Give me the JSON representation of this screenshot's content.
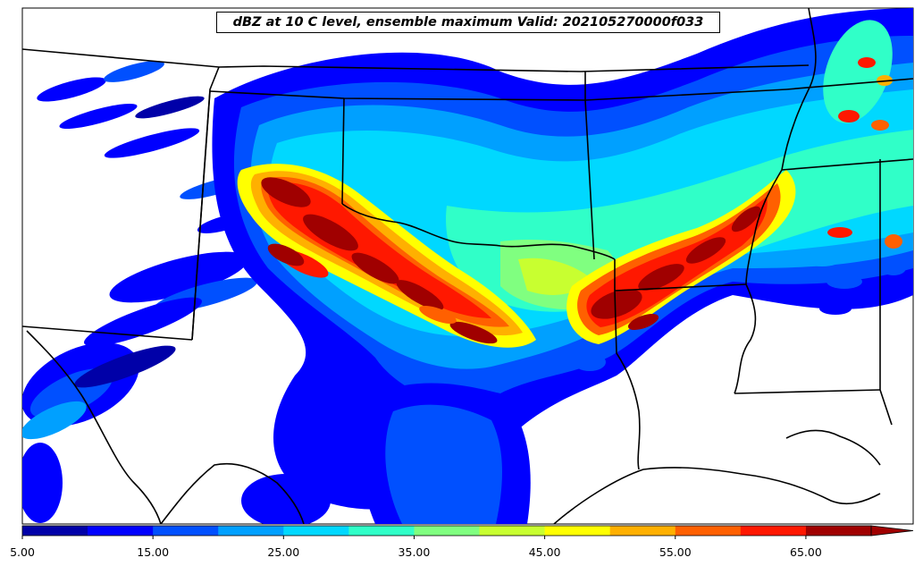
{
  "title": "dBZ at 10 C level, ensemble maximum Valid: 202105270000f033",
  "colorbar": {
    "ticks": [
      "5.00",
      "15.00",
      "25.00",
      "35.00",
      "45.00",
      "55.00",
      "65.00"
    ],
    "tick_values": [
      5,
      15,
      25,
      35,
      45,
      55,
      65
    ],
    "levels": [
      5,
      10,
      15,
      20,
      25,
      30,
      35,
      40,
      45,
      50,
      55,
      60,
      65,
      70
    ],
    "colors": [
      "#0000a8",
      "#0000ff",
      "#0050ff",
      "#00a0ff",
      "#00d8ff",
      "#30ffc8",
      "#80ff80",
      "#c8ff30",
      "#ffff00",
      "#ffb000",
      "#ff6000",
      "#ff1800",
      "#a00000"
    ],
    "extend": "max"
  },
  "colors": {
    "state_border": "#000000",
    "background": "#ffffff"
  }
}
